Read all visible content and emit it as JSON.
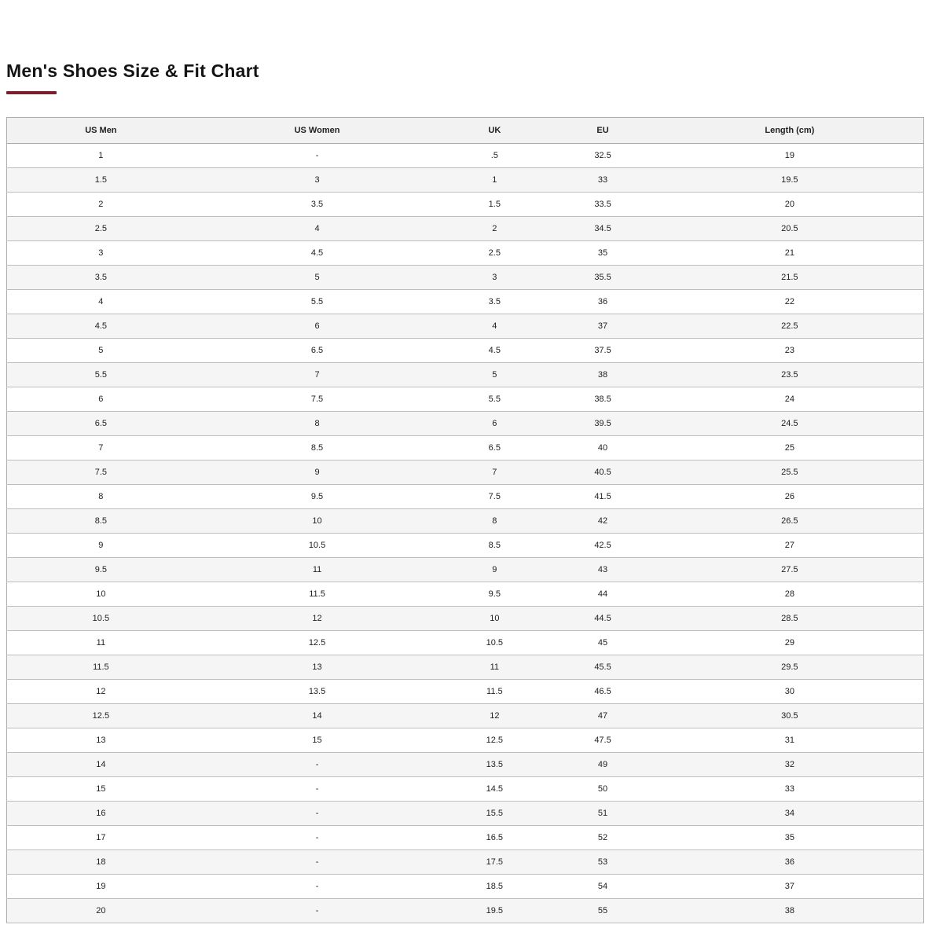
{
  "page": {
    "title": "Men's Shoes Size & Fit Chart"
  },
  "colors": {
    "accent_underline": "#7a1f2e",
    "header_bg": "#f2f2f2",
    "row_alt_bg": "#f5f5f5",
    "text": "#222222"
  },
  "table": {
    "columns": [
      "US Men",
      "US Women",
      "UK",
      "EU",
      "Length (cm)"
    ],
    "rows": [
      [
        "1",
        "-",
        ".5",
        "32.5",
        "19"
      ],
      [
        "1.5",
        "3",
        "1",
        "33",
        "19.5"
      ],
      [
        "2",
        "3.5",
        "1.5",
        "33.5",
        "20"
      ],
      [
        "2.5",
        "4",
        "2",
        "34.5",
        "20.5"
      ],
      [
        "3",
        "4.5",
        "2.5",
        "35",
        "21"
      ],
      [
        "3.5",
        "5",
        "3",
        "35.5",
        "21.5"
      ],
      [
        "4",
        "5.5",
        "3.5",
        "36",
        "22"
      ],
      [
        "4.5",
        "6",
        "4",
        "37",
        "22.5"
      ],
      [
        "5",
        "6.5",
        "4.5",
        "37.5",
        "23"
      ],
      [
        "5.5",
        "7",
        "5",
        "38",
        "23.5"
      ],
      [
        "6",
        "7.5",
        "5.5",
        "38.5",
        "24"
      ],
      [
        "6.5",
        "8",
        "6",
        "39.5",
        "24.5"
      ],
      [
        "7",
        "8.5",
        "6.5",
        "40",
        "25"
      ],
      [
        "7.5",
        "9",
        "7",
        "40.5",
        "25.5"
      ],
      [
        "8",
        "9.5",
        "7.5",
        "41.5",
        "26"
      ],
      [
        "8.5",
        "10",
        "8",
        "42",
        "26.5"
      ],
      [
        "9",
        "10.5",
        "8.5",
        "42.5",
        "27"
      ],
      [
        "9.5",
        "11",
        "9",
        "43",
        "27.5"
      ],
      [
        "10",
        "11.5",
        "9.5",
        "44",
        "28"
      ],
      [
        "10.5",
        "12",
        "10",
        "44.5",
        "28.5"
      ],
      [
        "11",
        "12.5",
        "10.5",
        "45",
        "29"
      ],
      [
        "11.5",
        "13",
        "11",
        "45.5",
        "29.5"
      ],
      [
        "12",
        "13.5",
        "11.5",
        "46.5",
        "30"
      ],
      [
        "12.5",
        "14",
        "12",
        "47",
        "30.5"
      ],
      [
        "13",
        "15",
        "12.5",
        "47.5",
        "31"
      ],
      [
        "14",
        "-",
        "13.5",
        "49",
        "32"
      ],
      [
        "15",
        "-",
        "14.5",
        "50",
        "33"
      ],
      [
        "16",
        "-",
        "15.5",
        "51",
        "34"
      ],
      [
        "17",
        "-",
        "16.5",
        "52",
        "35"
      ],
      [
        "18",
        "-",
        "17.5",
        "53",
        "36"
      ],
      [
        "19",
        "-",
        "18.5",
        "54",
        "37"
      ],
      [
        "20",
        "-",
        "19.5",
        "55",
        "38"
      ]
    ]
  }
}
